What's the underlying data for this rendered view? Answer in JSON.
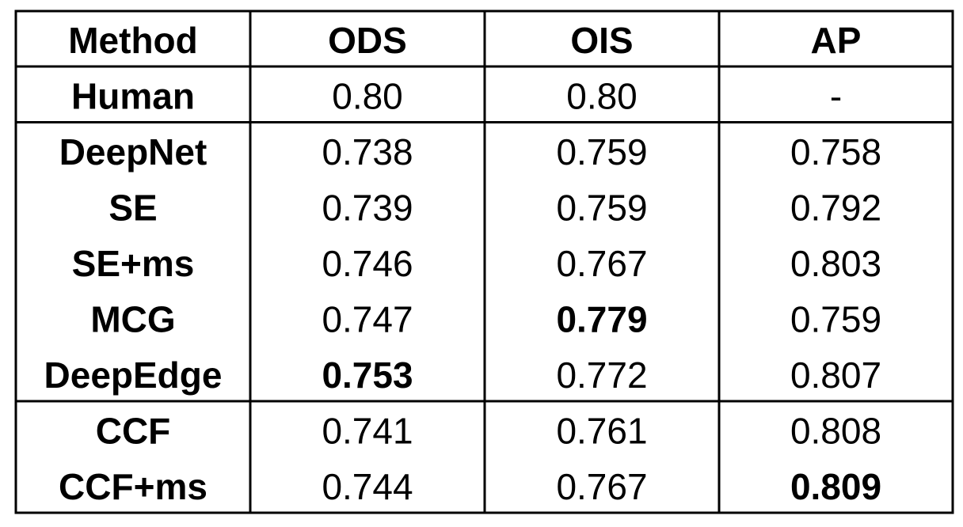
{
  "table": {
    "header": [
      "Method",
      "ODS",
      "OIS",
      "AP"
    ],
    "groups": [
      [
        [
          "Human",
          "0.80",
          "0.80",
          "-"
        ]
      ],
      [
        [
          "DeepNet",
          "0.738",
          "0.759",
          "0.758"
        ],
        [
          "SE",
          "0.739",
          "0.759",
          "0.792"
        ],
        [
          "SE+ms",
          "0.746",
          "0.767",
          "0.803"
        ],
        [
          "MCG",
          "0.747",
          "0.779",
          "0.759"
        ],
        [
          "DeepEdge",
          "0.753",
          "0.772",
          "0.807"
        ]
      ],
      [
        [
          "CCF",
          "0.741",
          "0.761",
          "0.808"
        ],
        [
          "CCF+ms",
          "0.744",
          "0.767",
          "0.809"
        ]
      ]
    ],
    "bold": [
      [
        1,
        3,
        2
      ],
      [
        1,
        4,
        1
      ],
      [
        2,
        1,
        3
      ]
    ]
  }
}
